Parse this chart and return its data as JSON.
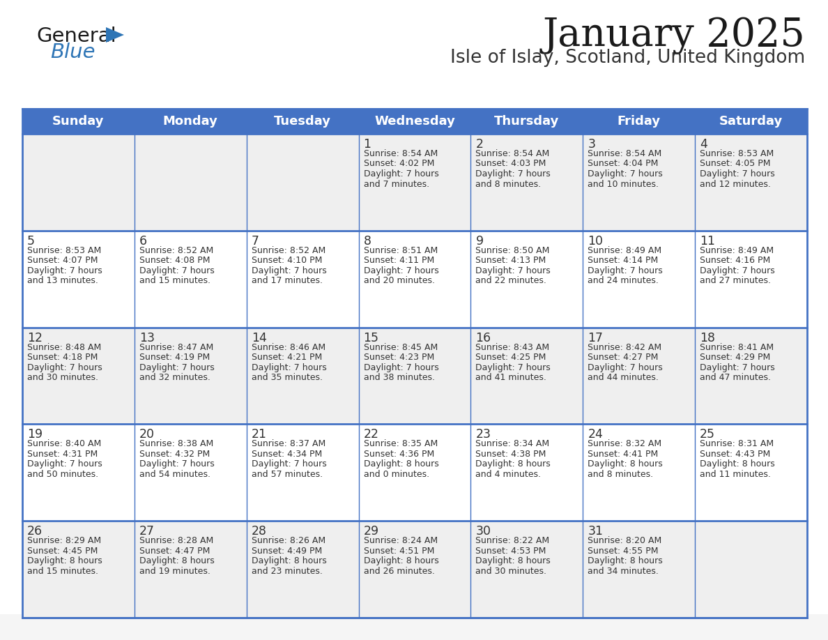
{
  "title": "January 2025",
  "subtitle": "Isle of Islay, Scotland, United Kingdom",
  "days_of_week": [
    "Sunday",
    "Monday",
    "Tuesday",
    "Wednesday",
    "Thursday",
    "Friday",
    "Saturday"
  ],
  "header_bg": "#4472C4",
  "header_text_color": "#FFFFFF",
  "row_bg_odd": "#EFEFEF",
  "row_bg_even": "#FFFFFF",
  "border_color": "#4472C4",
  "row_border_color": "#4472C4",
  "cell_text_color": "#333333",
  "day_num_color": "#333333",
  "title_color": "#1a1a1a",
  "subtitle_color": "#333333",
  "logo_general_color": "#1a1a1a",
  "logo_blue_color": "#2E75B6",
  "bg_color": "#FFFFFF",
  "bottom_bg_color": "#F5F5F5",
  "calendar_data": [
    [
      {
        "day": "",
        "lines": []
      },
      {
        "day": "",
        "lines": []
      },
      {
        "day": "",
        "lines": []
      },
      {
        "day": "1",
        "lines": [
          "Sunrise: 8:54 AM",
          "Sunset: 4:02 PM",
          "Daylight: 7 hours",
          "and 7 minutes."
        ]
      },
      {
        "day": "2",
        "lines": [
          "Sunrise: 8:54 AM",
          "Sunset: 4:03 PM",
          "Daylight: 7 hours",
          "and 8 minutes."
        ]
      },
      {
        "day": "3",
        "lines": [
          "Sunrise: 8:54 AM",
          "Sunset: 4:04 PM",
          "Daylight: 7 hours",
          "and 10 minutes."
        ]
      },
      {
        "day": "4",
        "lines": [
          "Sunrise: 8:53 AM",
          "Sunset: 4:05 PM",
          "Daylight: 7 hours",
          "and 12 minutes."
        ]
      }
    ],
    [
      {
        "day": "5",
        "lines": [
          "Sunrise: 8:53 AM",
          "Sunset: 4:07 PM",
          "Daylight: 7 hours",
          "and 13 minutes."
        ]
      },
      {
        "day": "6",
        "lines": [
          "Sunrise: 8:52 AM",
          "Sunset: 4:08 PM",
          "Daylight: 7 hours",
          "and 15 minutes."
        ]
      },
      {
        "day": "7",
        "lines": [
          "Sunrise: 8:52 AM",
          "Sunset: 4:10 PM",
          "Daylight: 7 hours",
          "and 17 minutes."
        ]
      },
      {
        "day": "8",
        "lines": [
          "Sunrise: 8:51 AM",
          "Sunset: 4:11 PM",
          "Daylight: 7 hours",
          "and 20 minutes."
        ]
      },
      {
        "day": "9",
        "lines": [
          "Sunrise: 8:50 AM",
          "Sunset: 4:13 PM",
          "Daylight: 7 hours",
          "and 22 minutes."
        ]
      },
      {
        "day": "10",
        "lines": [
          "Sunrise: 8:49 AM",
          "Sunset: 4:14 PM",
          "Daylight: 7 hours",
          "and 24 minutes."
        ]
      },
      {
        "day": "11",
        "lines": [
          "Sunrise: 8:49 AM",
          "Sunset: 4:16 PM",
          "Daylight: 7 hours",
          "and 27 minutes."
        ]
      }
    ],
    [
      {
        "day": "12",
        "lines": [
          "Sunrise: 8:48 AM",
          "Sunset: 4:18 PM",
          "Daylight: 7 hours",
          "and 30 minutes."
        ]
      },
      {
        "day": "13",
        "lines": [
          "Sunrise: 8:47 AM",
          "Sunset: 4:19 PM",
          "Daylight: 7 hours",
          "and 32 minutes."
        ]
      },
      {
        "day": "14",
        "lines": [
          "Sunrise: 8:46 AM",
          "Sunset: 4:21 PM",
          "Daylight: 7 hours",
          "and 35 minutes."
        ]
      },
      {
        "day": "15",
        "lines": [
          "Sunrise: 8:45 AM",
          "Sunset: 4:23 PM",
          "Daylight: 7 hours",
          "and 38 minutes."
        ]
      },
      {
        "day": "16",
        "lines": [
          "Sunrise: 8:43 AM",
          "Sunset: 4:25 PM",
          "Daylight: 7 hours",
          "and 41 minutes."
        ]
      },
      {
        "day": "17",
        "lines": [
          "Sunrise: 8:42 AM",
          "Sunset: 4:27 PM",
          "Daylight: 7 hours",
          "and 44 minutes."
        ]
      },
      {
        "day": "18",
        "lines": [
          "Sunrise: 8:41 AM",
          "Sunset: 4:29 PM",
          "Daylight: 7 hours",
          "and 47 minutes."
        ]
      }
    ],
    [
      {
        "day": "19",
        "lines": [
          "Sunrise: 8:40 AM",
          "Sunset: 4:31 PM",
          "Daylight: 7 hours",
          "and 50 minutes."
        ]
      },
      {
        "day": "20",
        "lines": [
          "Sunrise: 8:38 AM",
          "Sunset: 4:32 PM",
          "Daylight: 7 hours",
          "and 54 minutes."
        ]
      },
      {
        "day": "21",
        "lines": [
          "Sunrise: 8:37 AM",
          "Sunset: 4:34 PM",
          "Daylight: 7 hours",
          "and 57 minutes."
        ]
      },
      {
        "day": "22",
        "lines": [
          "Sunrise: 8:35 AM",
          "Sunset: 4:36 PM",
          "Daylight: 8 hours",
          "and 0 minutes."
        ]
      },
      {
        "day": "23",
        "lines": [
          "Sunrise: 8:34 AM",
          "Sunset: 4:38 PM",
          "Daylight: 8 hours",
          "and 4 minutes."
        ]
      },
      {
        "day": "24",
        "lines": [
          "Sunrise: 8:32 AM",
          "Sunset: 4:41 PM",
          "Daylight: 8 hours",
          "and 8 minutes."
        ]
      },
      {
        "day": "25",
        "lines": [
          "Sunrise: 8:31 AM",
          "Sunset: 4:43 PM",
          "Daylight: 8 hours",
          "and 11 minutes."
        ]
      }
    ],
    [
      {
        "day": "26",
        "lines": [
          "Sunrise: 8:29 AM",
          "Sunset: 4:45 PM",
          "Daylight: 8 hours",
          "and 15 minutes."
        ]
      },
      {
        "day": "27",
        "lines": [
          "Sunrise: 8:28 AM",
          "Sunset: 4:47 PM",
          "Daylight: 8 hours",
          "and 19 minutes."
        ]
      },
      {
        "day": "28",
        "lines": [
          "Sunrise: 8:26 AM",
          "Sunset: 4:49 PM",
          "Daylight: 8 hours",
          "and 23 minutes."
        ]
      },
      {
        "day": "29",
        "lines": [
          "Sunrise: 8:24 AM",
          "Sunset: 4:51 PM",
          "Daylight: 8 hours",
          "and 26 minutes."
        ]
      },
      {
        "day": "30",
        "lines": [
          "Sunrise: 8:22 AM",
          "Sunset: 4:53 PM",
          "Daylight: 8 hours",
          "and 30 minutes."
        ]
      },
      {
        "day": "31",
        "lines": [
          "Sunrise: 8:20 AM",
          "Sunset: 4:55 PM",
          "Daylight: 8 hours",
          "and 34 minutes."
        ]
      },
      {
        "day": "",
        "lines": []
      }
    ]
  ]
}
